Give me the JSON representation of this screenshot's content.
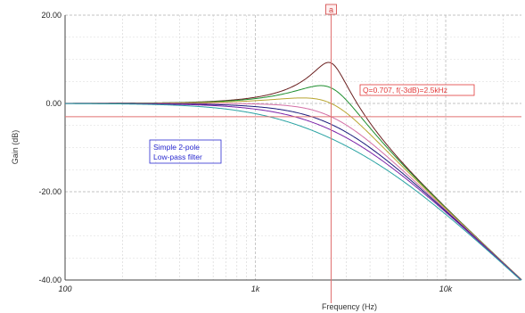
{
  "chart_data": {
    "type": "line",
    "xlabel": "Frequency (Hz)",
    "ylabel": "Gain (dB)",
    "xscale": "log",
    "xlim": [
      100,
      25000
    ],
    "ylim": [
      -40,
      20
    ],
    "yticks": [
      {
        "value": 20,
        "label": "20.00"
      },
      {
        "value": 0,
        "label": "0.00"
      },
      {
        "value": -20,
        "label": "-20.00"
      },
      {
        "value": -40,
        "label": "-40.00"
      }
    ],
    "xticks": [
      {
        "value": 100,
        "label": "100"
      },
      {
        "value": 1000,
        "label": "1k"
      },
      {
        "value": 10000,
        "label": "10k"
      }
    ],
    "grid": true,
    "cursor": {
      "label": "a",
      "x": 2500
    },
    "reference_line": {
      "y": -3
    },
    "annotations": [
      {
        "text": "Q=0.707, f(-3dB)=2.5kHz",
        "color": "#e23a3a"
      },
      {
        "lines": [
          "Simple 2-pole",
          "Low-pass filter"
        ],
        "color": "#2a2ad0"
      }
    ],
    "fc": 2500,
    "series": [
      {
        "Q": 2.87,
        "color": "#6a1f1f"
      },
      {
        "Q": 1.5,
        "color": "#1e8e2e"
      },
      {
        "Q": 1.0,
        "color": "#b8a530"
      },
      {
        "Q": 0.707,
        "color": "#d36fa6"
      },
      {
        "Q": 0.58,
        "color": "#1a1a7a"
      },
      {
        "Q": 0.5,
        "color": "#7a22a8"
      },
      {
        "Q": 0.4,
        "color": "#2aa3a3"
      }
    ]
  }
}
